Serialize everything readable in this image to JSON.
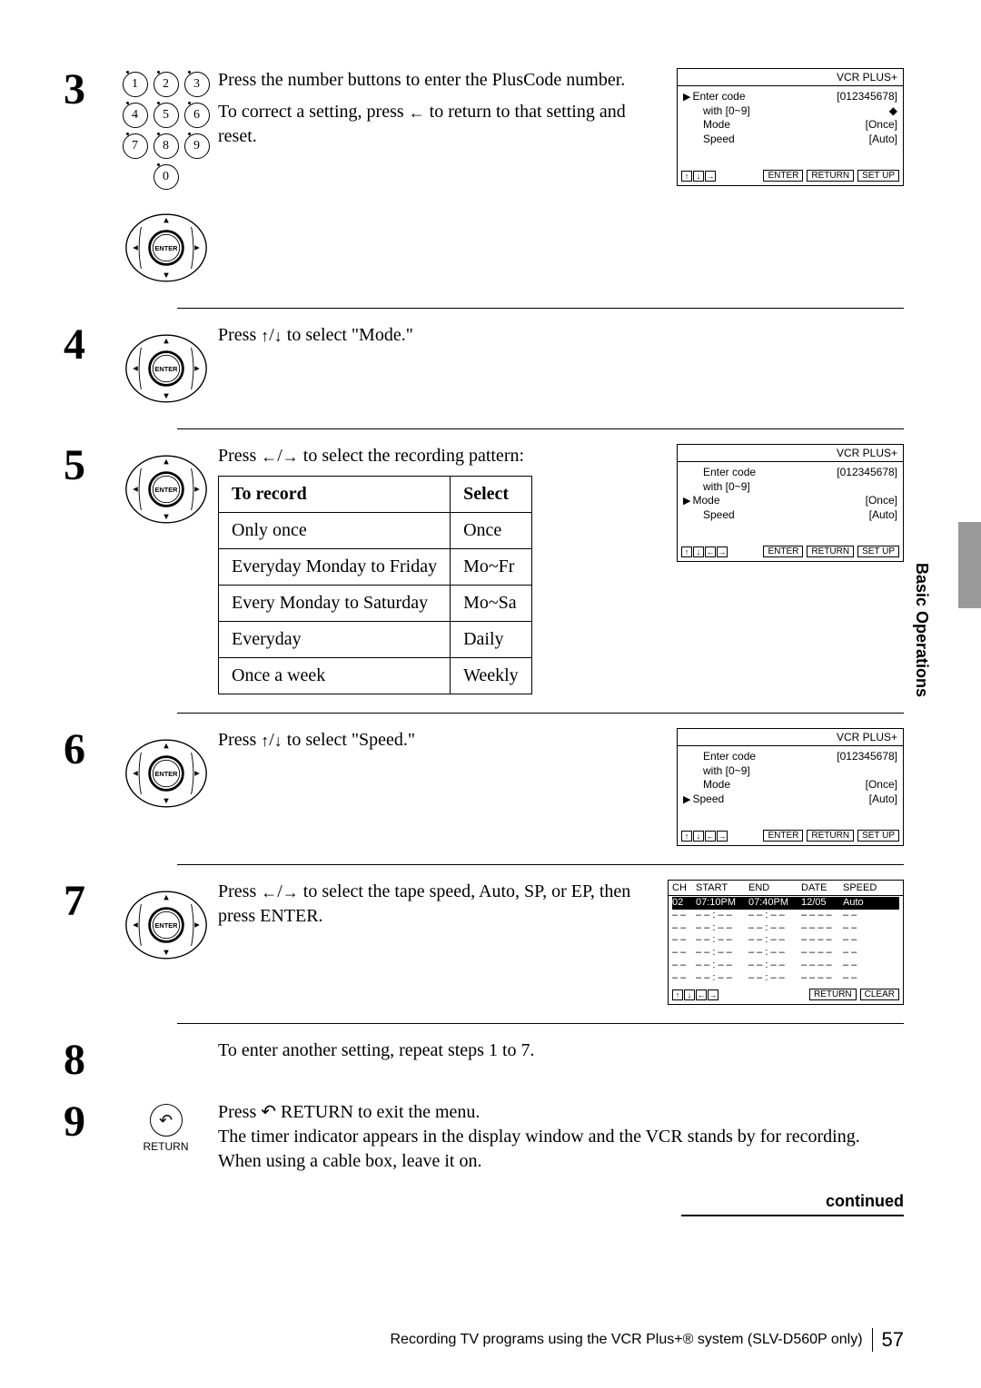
{
  "sideTab": "Basic Operations",
  "steps": {
    "s3": {
      "num": "3",
      "text1": "Press the number buttons to enter the PlusCode number.",
      "text2a": "To correct a setting, press ",
      "text2b": " to return to that setting and reset.",
      "screen": {
        "title": "VCR PLUS+",
        "r1l": "Enter code",
        "r1r": "[012345678]",
        "r2l": "with [0~9]",
        "r2r": "",
        "r3l": "Mode",
        "r3r": "[Once]",
        "r4l": "Speed",
        "r4r": "[Auto]",
        "pointerRow": 0,
        "footer": [
          "ENTER",
          "RETURN",
          "SET UP"
        ],
        "arrows": 3
      }
    },
    "s4": {
      "num": "4",
      "textA": "Press ",
      "textB": " to select \"Mode.\""
    },
    "s5": {
      "num": "5",
      "textA": "Press ",
      "textB": " to select the recording pattern:",
      "tableHead": [
        "To record",
        "Select"
      ],
      "tableRows": [
        [
          "Only once",
          "Once"
        ],
        [
          "Everyday Monday to Friday",
          "Mo~Fr"
        ],
        [
          "Every Monday to Saturday",
          "Mo~Sa"
        ],
        [
          "Everyday",
          "Daily"
        ],
        [
          "Once a week",
          "Weekly"
        ]
      ],
      "screen": {
        "title": "VCR PLUS+",
        "r1l": "Enter code",
        "r1r": "[012345678]",
        "r2l": "with [0~9]",
        "r2r": "",
        "r3l": "Mode",
        "r3r": "[Once]",
        "r4l": "Speed",
        "r4r": "[Auto]",
        "pointerRow": 2,
        "footer": [
          "ENTER",
          "RETURN",
          "SET UP"
        ],
        "arrows": 4
      }
    },
    "s6": {
      "num": "6",
      "textA": "Press ",
      "textB": " to select \"Speed.\"",
      "screen": {
        "title": "VCR PLUS+",
        "r1l": "Enter code",
        "r1r": "[012345678]",
        "r2l": "with [0~9]",
        "r2r": "",
        "r3l": "Mode",
        "r3r": "[Once]",
        "r4l": "Speed",
        "r4r": "[Auto]",
        "pointerRow": 3,
        "footer": [
          "ENTER",
          "RETURN",
          "SET UP"
        ],
        "arrows": 4
      }
    },
    "s7": {
      "num": "7",
      "textA": "Press ",
      "textB": " to select the tape speed, Auto, SP, or EP, then press ENTER.",
      "timerHead": [
        "CH",
        "START",
        "END",
        "DATE",
        "SPEED"
      ],
      "timerRows": [
        [
          "02",
          "07:10PM",
          "07:40PM",
          "12/05",
          "Auto"
        ],
        [
          "– –",
          "– – : – –",
          "– – : – –",
          "– – – –",
          "– –"
        ],
        [
          "– –",
          "– – : – –",
          "– – : – –",
          "– – – –",
          "– –"
        ],
        [
          "– –",
          "– – : – –",
          "– – : – –",
          "– – – –",
          "– –"
        ],
        [
          "– –",
          "– – : – –",
          "– – : – –",
          "– – – –",
          "– –"
        ],
        [
          "– –",
          "– – : – –",
          "– – : – –",
          "– – – –",
          "– –"
        ],
        [
          "– –",
          "– – : – –",
          "– – : – –",
          "– – – –",
          "– –"
        ]
      ],
      "timerFooter": [
        "RETURN",
        "CLEAR"
      ]
    },
    "s8": {
      "num": "8",
      "text": "To enter another setting, repeat steps 1 to 7."
    },
    "s9": {
      "num": "9",
      "textA": "Press ",
      "textB": " RETURN to exit the menu.",
      "text2": "The timer indicator appears in the display window and the VCR stands by for recording.  When using a cable box, leave it on.",
      "returnLabel": "RETURN"
    }
  },
  "continued": "continued",
  "footerText": "Recording TV programs using the VCR Plus+® system (SLV-D560P only)",
  "pageNum": "57"
}
